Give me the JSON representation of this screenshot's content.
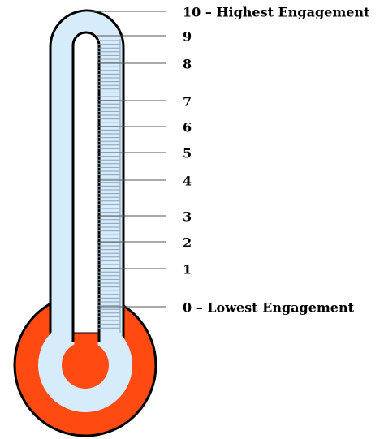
{
  "scale": {
    "labels": [
      "10 – Highest Engagement",
      "9",
      "8",
      "7",
      "6",
      "5",
      "4",
      "3",
      "2",
      "1",
      "0 – Lowest Engagement"
    ]
  }
}
